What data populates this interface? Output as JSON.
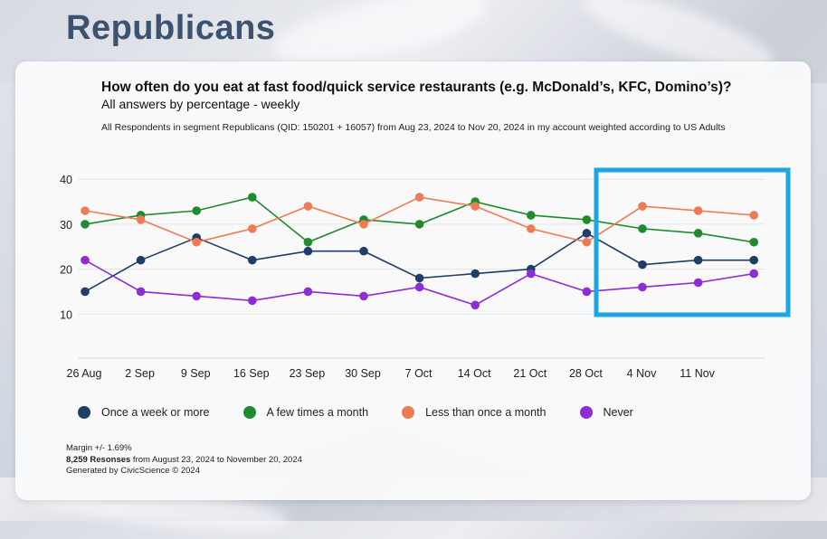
{
  "page": {
    "heading": "Republicans"
  },
  "colors": {
    "highlight": "#1ba7e2"
  },
  "chart_data": {
    "type": "line",
    "title": "How often do you eat at fast food/quick service restaurants (e.g. McDonald’s, KFC, Domino’s)?",
    "subtitle": "All answers by percentage - weekly",
    "note": "All Respondents in segment Republicans (QID: 150201 + 16057) from Aug 23, 2024 to Nov 20, 2024 in my account weighted according to US Adults",
    "x_tick_labels": [
      "26 Aug",
      "2 Sep",
      "9 Sep",
      "16 Sep",
      "23 Sep",
      "30 Sep",
      "7 Oct",
      "14 Oct",
      "21 Oct",
      "28 Oct",
      "4 Nov",
      "11 Nov"
    ],
    "y_ticks": [
      10,
      20,
      30,
      40
    ],
    "ylim": [
      0,
      42
    ],
    "grid": true,
    "legend_position": "bottom",
    "series": [
      {
        "name": "Once a week or more",
        "color": "#1f3d66",
        "values": [
          15,
          22,
          27,
          22,
          24,
          24,
          18,
          19,
          20,
          28,
          21,
          22,
          22
        ]
      },
      {
        "name": "A few times a month",
        "color": "#1f8a2e",
        "values": [
          30,
          32,
          33,
          36,
          26,
          31,
          30,
          35,
          32,
          31,
          29,
          28,
          26
        ]
      },
      {
        "name": "Less than once a month",
        "color": "#ee7b55",
        "values": [
          33,
          31,
          26,
          29,
          34,
          30,
          36,
          34,
          29,
          26,
          34,
          33,
          32
        ]
      },
      {
        "name": "Never",
        "color": "#8e2cd6",
        "values": [
          22,
          15,
          14,
          13,
          15,
          14,
          16,
          12,
          19,
          15,
          16,
          17,
          19
        ]
      }
    ]
  },
  "footer": {
    "margin": "Margin +/- 1.69%",
    "responses_bold": "8,259 Resonses",
    "responses_rest": " from August 23, 2024 to November 20, 2024",
    "generated": "Generated by CivicScience © 2024"
  }
}
